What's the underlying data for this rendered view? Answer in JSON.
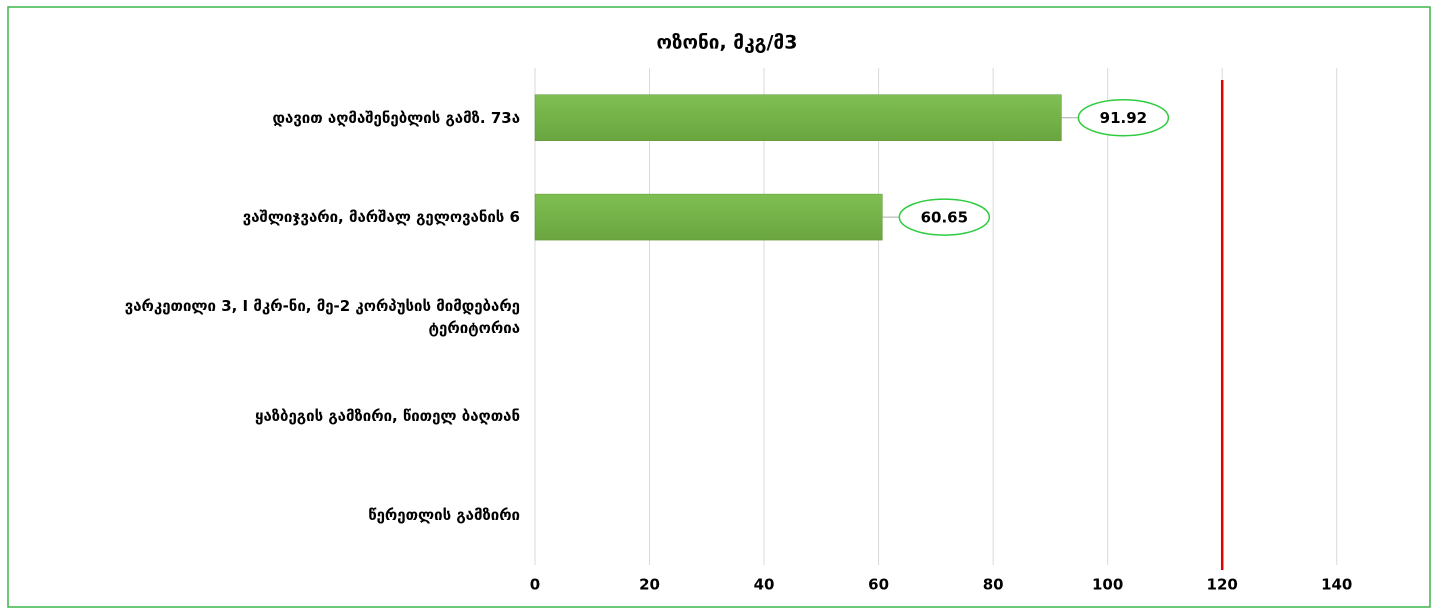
{
  "chart_data": {
    "type": "bar",
    "orientation": "horizontal",
    "title": "ოზონი, მკგ/მ3",
    "categories": [
      "დავით აღმაშენებლის გამზ. 73ა",
      "ვაშლიჯვარი, მარშალ გელოვანის 6",
      "ვარკეთილი 3, I მკრ-ნი, მე-2 კორპუსის მიმდებარე ტერიტორია",
      "ყაზბეგის გამზირი, წითელ ბაღთან",
      "წერეთლის გამზირი"
    ],
    "values": [
      91.92,
      60.65,
      null,
      null,
      null
    ],
    "color": "#6aa53f",
    "xlim": [
      0,
      150
    ],
    "xticks": [
      0,
      20,
      40,
      60,
      80,
      100,
      120,
      140
    ],
    "grid": true,
    "threshold": 120,
    "threshold_color": "#e00000"
  }
}
